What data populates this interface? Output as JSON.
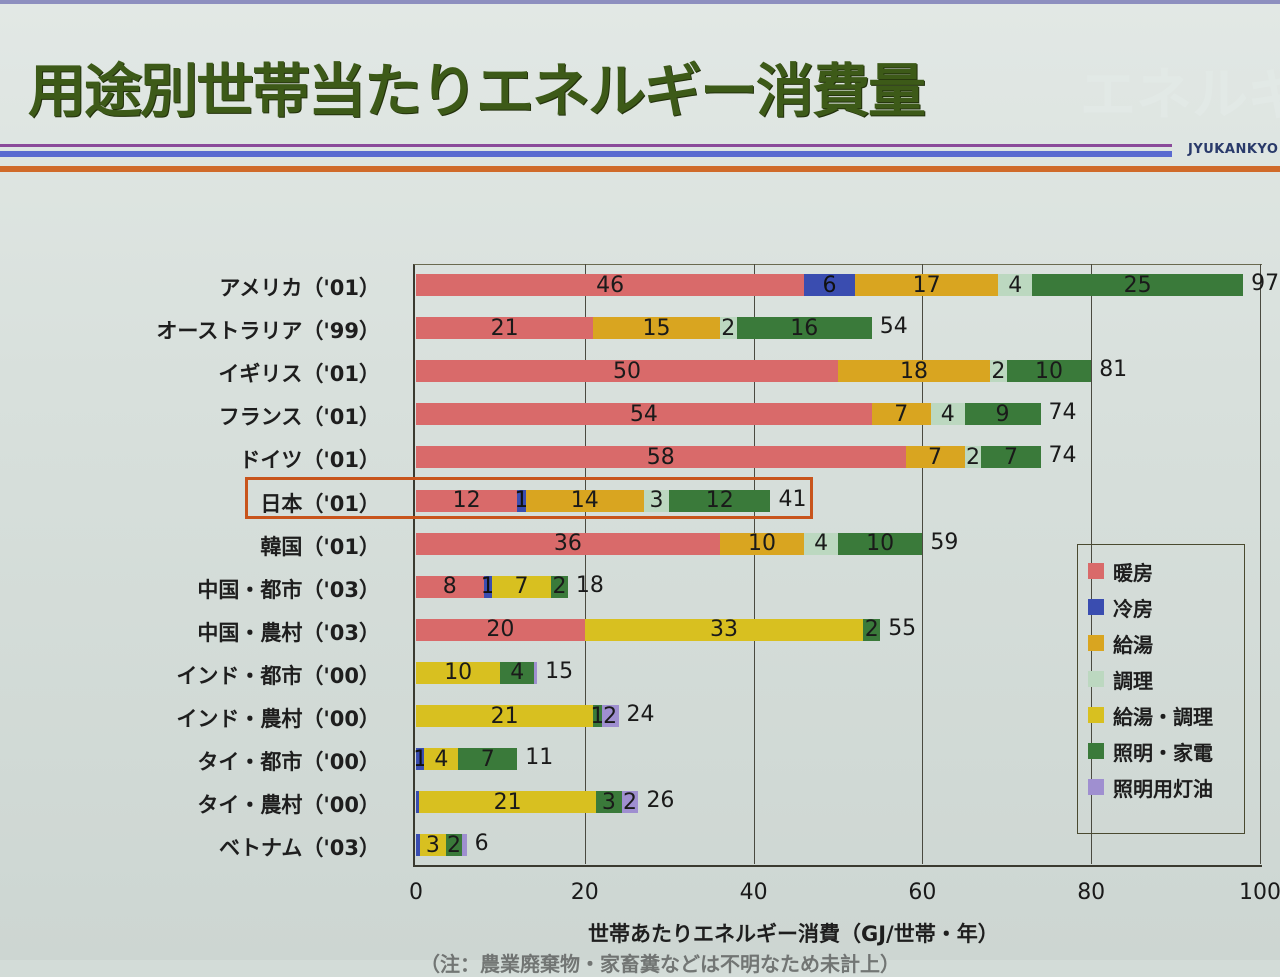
{
  "slide": {
    "title": "用途別世帯当たりエネルギー消費量",
    "brand": "JYUKANKYO",
    "footer_partial": "（注：農業廃棄物・家畜糞などは不明なため未計上）"
  },
  "colors": {
    "heating": "#d96a6a",
    "cooling": "#3a4db0",
    "hot_water": "#d9a520",
    "cooking": "#bcd8c0",
    "hot_water_cooking": "#d8c020",
    "lighting_appliances": "#3a7a3a",
    "lighting_kerosene": "#9f8fd0",
    "highlight_border": "#c8541c",
    "title": "#3d5a18"
  },
  "chart_data": {
    "type": "bar",
    "orientation": "horizontal",
    "stacked": true,
    "title": "用途別世帯当たりエネルギー消費量",
    "xlabel": "世帯あたりエネルギー消費（GJ/世帯・年）",
    "ylabel": "",
    "xlim": [
      0,
      100
    ],
    "xticks": [
      0,
      20,
      40,
      60,
      80,
      100
    ],
    "grid": "vertical",
    "legend_position": "right-inside",
    "highlighted_category": "日本（'01）",
    "categories": [
      "アメリカ（'01）",
      "オーストラリア（'99）",
      "イギリス（'01）",
      "フランス（'01）",
      "ドイツ（'01）",
      "日本（'01）",
      "韓国（'01）",
      "中国・都市（'03）",
      "中国・農村（'03）",
      "インド・都市（'00）",
      "インド・農村（'00）",
      "タイ・都市（'00）",
      "タイ・農村（'00）",
      "ベトナム（'03）"
    ],
    "series": [
      {
        "name": "暖房",
        "key": "heating",
        "values": [
          46,
          21,
          50,
          54,
          58,
          12,
          36,
          8,
          20,
          0,
          0,
          0,
          0,
          0
        ]
      },
      {
        "name": "冷房",
        "key": "cooling",
        "values": [
          6,
          0,
          0,
          0,
          0,
          1,
          0,
          1,
          0,
          0,
          0,
          1,
          0.3,
          0.5
        ]
      },
      {
        "name": "給湯",
        "key": "hot_water",
        "values": [
          17,
          15,
          18,
          7,
          7,
          14,
          10,
          0,
          0,
          0,
          0,
          0,
          0,
          0
        ]
      },
      {
        "name": "調理",
        "key": "cooking",
        "values": [
          4,
          2,
          2,
          4,
          2,
          3,
          4,
          0,
          0,
          0,
          0,
          0,
          0,
          0
        ]
      },
      {
        "name": "給湯・調理",
        "key": "hot_water_cooking",
        "values": [
          0,
          0,
          0,
          0,
          0,
          0,
          0,
          7,
          33,
          10,
          21,
          4,
          21,
          3
        ]
      },
      {
        "name": "照明・家電",
        "key": "lighting_appliances",
        "values": [
          25,
          16,
          10,
          9,
          7,
          12,
          10,
          2,
          2,
          4,
          1,
          7,
          3,
          2
        ]
      },
      {
        "name": "照明用灯油",
        "key": "lighting_kerosene",
        "values": [
          0,
          0,
          0,
          0,
          0,
          0,
          0,
          0,
          0,
          0.3,
          2,
          0,
          2,
          0.5
        ]
      }
    ],
    "totals": [
      97,
      54,
      81,
      74,
      74,
      41,
      59,
      18,
      55,
      15,
      24,
      11,
      26,
      6
    ],
    "rows": [
      {
        "label": "アメリカ（'01）",
        "segments": [
          {
            "k": "heating",
            "v": 46,
            "t": "46"
          },
          {
            "k": "cooling",
            "v": 6,
            "t": "6"
          },
          {
            "k": "hot_water",
            "v": 17,
            "t": "17"
          },
          {
            "k": "cooking",
            "v": 4,
            "t": "4"
          },
          {
            "k": "lighting_appliances",
            "v": 25,
            "t": "25"
          }
        ],
        "total": "97"
      },
      {
        "label": "オーストラリア（'99）",
        "segments": [
          {
            "k": "heating",
            "v": 21,
            "t": "21"
          },
          {
            "k": "hot_water",
            "v": 15,
            "t": "15"
          },
          {
            "k": "cooking",
            "v": 2,
            "t": "2"
          },
          {
            "k": "lighting_appliances",
            "v": 16,
            "t": "16"
          }
        ],
        "total": "54"
      },
      {
        "label": "イギリス（'01）",
        "segments": [
          {
            "k": "heating",
            "v": 50,
            "t": "50"
          },
          {
            "k": "hot_water",
            "v": 18,
            "t": "18"
          },
          {
            "k": "cooking",
            "v": 2,
            "t": "2"
          },
          {
            "k": "lighting_appliances",
            "v": 10,
            "t": "10"
          }
        ],
        "total": "81"
      },
      {
        "label": "フランス（'01）",
        "segments": [
          {
            "k": "heating",
            "v": 54,
            "t": "54"
          },
          {
            "k": "hot_water",
            "v": 7,
            "t": "7"
          },
          {
            "k": "cooking",
            "v": 4,
            "t": "4"
          },
          {
            "k": "lighting_appliances",
            "v": 9,
            "t": "9"
          }
        ],
        "total": "74"
      },
      {
        "label": "ドイツ（'01）",
        "segments": [
          {
            "k": "heating",
            "v": 58,
            "t": "58"
          },
          {
            "k": "hot_water",
            "v": 7,
            "t": "7"
          },
          {
            "k": "cooking",
            "v": 2,
            "t": "2"
          },
          {
            "k": "lighting_appliances",
            "v": 7,
            "t": "7"
          }
        ],
        "total": "74"
      },
      {
        "label": "日本（'01）",
        "segments": [
          {
            "k": "heating",
            "v": 12,
            "t": "12"
          },
          {
            "k": "cooling",
            "v": 1,
            "t": "1"
          },
          {
            "k": "hot_water",
            "v": 14,
            "t": "14"
          },
          {
            "k": "cooking",
            "v": 3,
            "t": "3"
          },
          {
            "k": "lighting_appliances",
            "v": 12,
            "t": "12"
          }
        ],
        "total": "41"
      },
      {
        "label": "韓国（'01）",
        "segments": [
          {
            "k": "heating",
            "v": 36,
            "t": "36"
          },
          {
            "k": "hot_water",
            "v": 10,
            "t": "10"
          },
          {
            "k": "cooking",
            "v": 4,
            "t": "4"
          },
          {
            "k": "lighting_appliances",
            "v": 10,
            "t": "10"
          }
        ],
        "total": "59"
      },
      {
        "label": "中国・都市（'03）",
        "segments": [
          {
            "k": "heating",
            "v": 8,
            "t": "8"
          },
          {
            "k": "cooling",
            "v": 1,
            "t": "1"
          },
          {
            "k": "hot_water_cooking",
            "v": 7,
            "t": "7"
          },
          {
            "k": "lighting_appliances",
            "v": 2,
            "t": "2"
          }
        ],
        "total": "18"
      },
      {
        "label": "中国・農村（'03）",
        "segments": [
          {
            "k": "heating",
            "v": 20,
            "t": "20"
          },
          {
            "k": "hot_water_cooking",
            "v": 33,
            "t": "33"
          },
          {
            "k": "lighting_appliances",
            "v": 2,
            "t": "2"
          }
        ],
        "total": "55"
      },
      {
        "label": "インド・都市（'00）",
        "segments": [
          {
            "k": "hot_water_cooking",
            "v": 10,
            "t": "10"
          },
          {
            "k": "lighting_appliances",
            "v": 4,
            "t": "4"
          },
          {
            "k": "lighting_kerosene",
            "v": 0.3,
            "t": ""
          }
        ],
        "total": "15"
      },
      {
        "label": "インド・農村（'00）",
        "segments": [
          {
            "k": "hot_water_cooking",
            "v": 21,
            "t": "21"
          },
          {
            "k": "lighting_appliances",
            "v": 1,
            "t": "1"
          },
          {
            "k": "lighting_kerosene",
            "v": 2,
            "t": "2"
          }
        ],
        "total": "24"
      },
      {
        "label": "タイ・都市（'00）",
        "segments": [
          {
            "k": "cooling",
            "v": 1,
            "t": "1"
          },
          {
            "k": "hot_water_cooking",
            "v": 4,
            "t": "4"
          },
          {
            "k": "lighting_appliances",
            "v": 7,
            "t": "7"
          }
        ],
        "total": "11"
      },
      {
        "label": "タイ・農村（'00）",
        "segments": [
          {
            "k": "cooling",
            "v": 0.3,
            "t": ""
          },
          {
            "k": "hot_water_cooking",
            "v": 21,
            "t": "21"
          },
          {
            "k": "lighting_appliances",
            "v": 3,
            "t": "3"
          },
          {
            "k": "lighting_kerosene",
            "v": 2,
            "t": "2"
          }
        ],
        "total": "26"
      },
      {
        "label": "ベトナム（'03）",
        "segments": [
          {
            "k": "cooling",
            "v": 0.5,
            "t": ""
          },
          {
            "k": "hot_water_cooking",
            "v": 3,
            "t": "3"
          },
          {
            "k": "lighting_appliances",
            "v": 2,
            "t": "2"
          },
          {
            "k": "lighting_kerosene",
            "v": 0.5,
            "t": ""
          }
        ],
        "total": "6"
      }
    ],
    "legend": [
      {
        "key": "heating",
        "label": "暖房"
      },
      {
        "key": "cooling",
        "label": "冷房"
      },
      {
        "key": "hot_water",
        "label": "給湯"
      },
      {
        "key": "cooking",
        "label": "調理"
      },
      {
        "key": "hot_water_cooking",
        "label": "給湯・調理"
      },
      {
        "key": "lighting_appliances",
        "label": "照明・家電"
      },
      {
        "key": "lighting_kerosene",
        "label": "照明用灯油"
      }
    ]
  }
}
